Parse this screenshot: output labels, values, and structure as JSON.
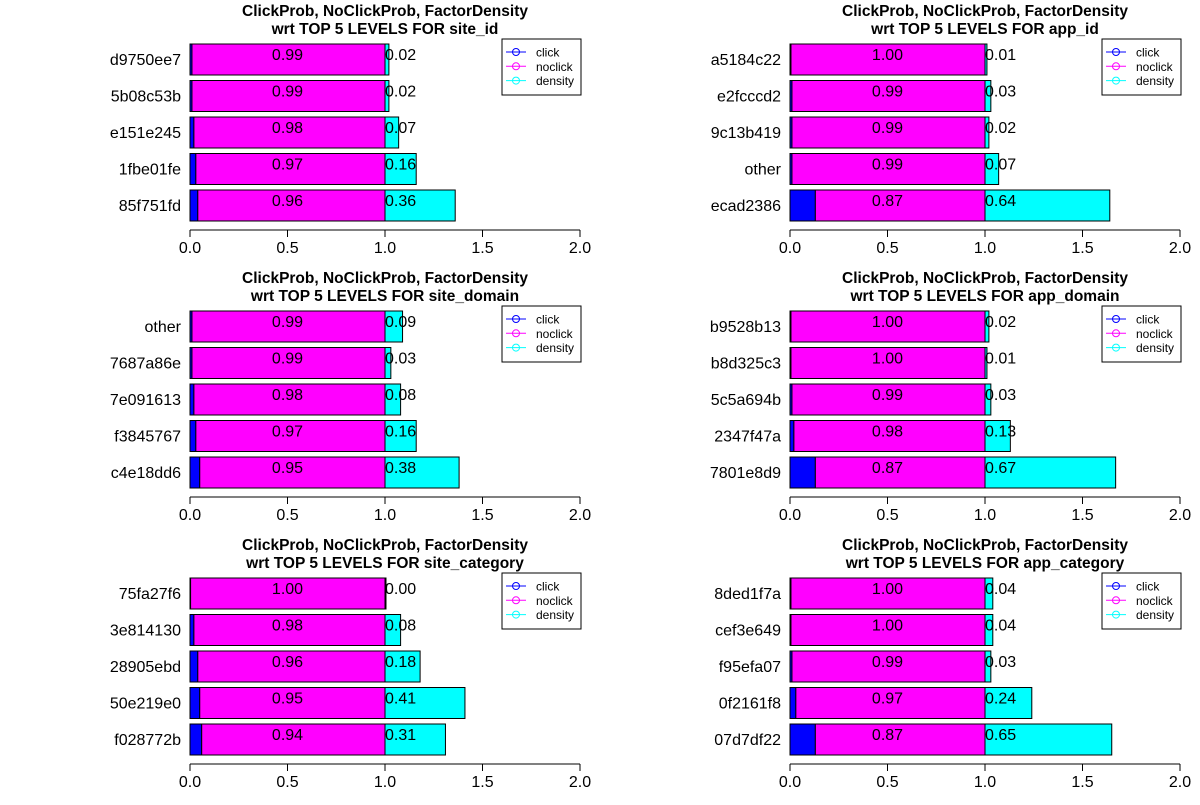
{
  "colors": {
    "click": "#0000ff",
    "noclick": "#ff00ff",
    "density": "#00ffff"
  },
  "chart_data": [
    {
      "type": "bar",
      "title": "ClickProb, NoClickProb, FactorDensity",
      "subtitle": "wrt TOP 5 LEVELS FOR  site_id",
      "categories": [
        "d9750ee7",
        "5b08c53b",
        "e151e245",
        "1fbe01fe",
        "85f751fd"
      ],
      "series": [
        {
          "name": "click",
          "values": [
            0.01,
            0.01,
            0.02,
            0.03,
            0.04
          ]
        },
        {
          "name": "noclick",
          "values": [
            0.99,
            0.99,
            0.98,
            0.97,
            0.96
          ]
        },
        {
          "name": "density",
          "values": [
            0.02,
            0.02,
            0.07,
            0.16,
            0.36
          ]
        }
      ],
      "labels": {
        "noclick": [
          "0.99",
          "0.99",
          "0.98",
          "0.97",
          "0.96"
        ],
        "density": [
          "0.02",
          "0.02",
          "0.07",
          "0.16",
          "0.36"
        ]
      },
      "xlim": [
        0,
        2
      ],
      "xticks": [
        "0.0",
        "0.5",
        "1.0",
        "1.5",
        "2.0"
      ],
      "legend": [
        "click",
        "noclick",
        "density"
      ],
      "legend_position": "top-right"
    },
    {
      "type": "bar",
      "title": "ClickProb, NoClickProb, FactorDensity",
      "subtitle": "wrt TOP 5 LEVELS FOR  app_id",
      "categories": [
        "a5184c22",
        "e2fcccd2",
        "9c13b419",
        "other",
        "ecad2386"
      ],
      "series": [
        {
          "name": "click",
          "values": [
            0.005,
            0.01,
            0.01,
            0.01,
            0.13
          ]
        },
        {
          "name": "noclick",
          "values": [
            1.0,
            0.99,
            0.99,
            0.99,
            0.87
          ]
        },
        {
          "name": "density",
          "values": [
            0.01,
            0.03,
            0.02,
            0.07,
            0.64
          ]
        }
      ],
      "labels": {
        "noclick": [
          "1.00",
          "0.99",
          "0.99",
          "0.99",
          "0.87"
        ],
        "density": [
          "0.01",
          "0.03",
          "0.02",
          "0.07",
          "0.64"
        ]
      },
      "xlim": [
        0,
        2
      ],
      "xticks": [
        "0.0",
        "0.5",
        "1.0",
        "1.5",
        "2.0"
      ],
      "legend": [
        "click",
        "noclick",
        "density"
      ],
      "legend_position": "top-right"
    },
    {
      "type": "bar",
      "title": "ClickProb, NoClickProb, FactorDensity",
      "subtitle": "wrt TOP 5 LEVELS FOR  site_domain",
      "categories": [
        "other",
        "7687a86e",
        "7e091613",
        "f3845767",
        "c4e18dd6"
      ],
      "series": [
        {
          "name": "click",
          "values": [
            0.01,
            0.01,
            0.02,
            0.03,
            0.05
          ]
        },
        {
          "name": "noclick",
          "values": [
            0.99,
            0.99,
            0.98,
            0.97,
            0.95
          ]
        },
        {
          "name": "density",
          "values": [
            0.09,
            0.03,
            0.08,
            0.16,
            0.38
          ]
        }
      ],
      "labels": {
        "noclick": [
          "0.99",
          "0.99",
          "0.98",
          "0.97",
          "0.95"
        ],
        "density": [
          "0.09",
          "0.03",
          "0.08",
          "0.16",
          "0.38"
        ]
      },
      "xlim": [
        0,
        2
      ],
      "xticks": [
        "0.0",
        "0.5",
        "1.0",
        "1.5",
        "2.0"
      ],
      "legend": [
        "click",
        "noclick",
        "density"
      ],
      "legend_position": "top-right"
    },
    {
      "type": "bar",
      "title": "ClickProb, NoClickProb, FactorDensity",
      "subtitle": "wrt TOP 5 LEVELS FOR  app_domain",
      "categories": [
        "b9528b13",
        "b8d325c3",
        "5c5a694b",
        "2347f47a",
        "7801e8d9"
      ],
      "series": [
        {
          "name": "click",
          "values": [
            0.005,
            0.005,
            0.01,
            0.02,
            0.13
          ]
        },
        {
          "name": "noclick",
          "values": [
            1.0,
            1.0,
            0.99,
            0.98,
            0.87
          ]
        },
        {
          "name": "density",
          "values": [
            0.02,
            0.01,
            0.03,
            0.13,
            0.67
          ]
        }
      ],
      "labels": {
        "noclick": [
          "1.00",
          "1.00",
          "0.99",
          "0.98",
          "0.87"
        ],
        "density": [
          "0.02",
          "0.01",
          "0.03",
          "0.13",
          "0.67"
        ]
      },
      "xlim": [
        0,
        2
      ],
      "xticks": [
        "0.0",
        "0.5",
        "1.0",
        "1.5",
        "2.0"
      ],
      "legend": [
        "click",
        "noclick",
        "density"
      ],
      "legend_position": "top-right"
    },
    {
      "type": "bar",
      "title": "ClickProb, NoClickProb, FactorDensity",
      "subtitle": "wrt TOP 5 LEVELS FOR  site_category",
      "categories": [
        "75fa27f6",
        "3e814130",
        "28905ebd",
        "50e219e0",
        "f028772b"
      ],
      "series": [
        {
          "name": "click",
          "values": [
            0.003,
            0.02,
            0.04,
            0.05,
            0.06
          ]
        },
        {
          "name": "noclick",
          "values": [
            1.0,
            0.98,
            0.96,
            0.95,
            0.94
          ]
        },
        {
          "name": "density",
          "values": [
            0.0,
            0.08,
            0.18,
            0.41,
            0.31
          ]
        }
      ],
      "labels": {
        "noclick": [
          "1.00",
          "0.98",
          "0.96",
          "0.95",
          "0.94"
        ],
        "density": [
          "0.00",
          "0.08",
          "0.18",
          "0.41",
          "0.31"
        ]
      },
      "xlim": [
        0,
        2
      ],
      "xticks": [
        "0.0",
        "0.5",
        "1.0",
        "1.5",
        "2.0"
      ],
      "legend": [
        "click",
        "noclick",
        "density"
      ],
      "legend_position": "top-right"
    },
    {
      "type": "bar",
      "title": "ClickProb, NoClickProb, FactorDensity",
      "subtitle": "wrt TOP 5 LEVELS FOR  app_category",
      "categories": [
        "8ded1f7a",
        "cef3e649",
        "f95efa07",
        "0f2161f8",
        "07d7df22"
      ],
      "series": [
        {
          "name": "click",
          "values": [
            0.005,
            0.005,
            0.01,
            0.03,
            0.13
          ]
        },
        {
          "name": "noclick",
          "values": [
            1.0,
            1.0,
            0.99,
            0.97,
            0.87
          ]
        },
        {
          "name": "density",
          "values": [
            0.04,
            0.04,
            0.03,
            0.24,
            0.65
          ]
        }
      ],
      "labels": {
        "noclick": [
          "1.00",
          "1.00",
          "0.99",
          "0.97",
          "0.87"
        ],
        "density": [
          "0.04",
          "0.04",
          "0.03",
          "0.24",
          "0.65"
        ]
      },
      "xlim": [
        0,
        2
      ],
      "xticks": [
        "0.0",
        "0.5",
        "1.0",
        "1.5",
        "2.0"
      ],
      "legend": [
        "click",
        "noclick",
        "density"
      ],
      "legend_position": "top-right"
    }
  ]
}
